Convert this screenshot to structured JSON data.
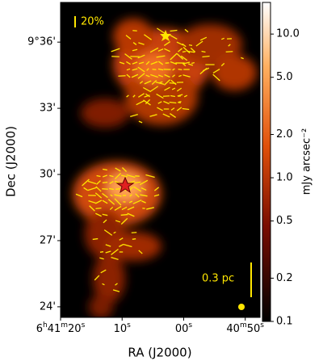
{
  "chart_data": {
    "type": "image",
    "xlabel": "RA (J2000)",
    "ylabel": "Dec (J2000)",
    "xlim": [
      20,
      -12.4
    ],
    "ylim": [
      23.52,
      37.8
    ],
    "xticks": [
      {
        "value": 20,
        "label": "6h41m20s"
      },
      {
        "value": 10,
        "label": "10s"
      },
      {
        "value": 0,
        "label": "00s"
      },
      {
        "value": -10,
        "label": "40m50s"
      }
    ],
    "yticks": [
      {
        "value": 36,
        "label": "9°36'"
      },
      {
        "value": 33,
        "label": "33'"
      },
      {
        "value": 30,
        "label": "30'"
      },
      {
        "value": 27,
        "label": "27'"
      },
      {
        "value": 24,
        "label": "24'"
      }
    ],
    "colorbar": {
      "label": "mJy arcsec⁻²",
      "log": true,
      "lim": [
        0.1,
        16.6
      ],
      "ticks": [
        0.1,
        0.2,
        0.5,
        {
          "value": 1,
          "label": "1.0"
        },
        {
          "value": 2,
          "label": "2.0"
        },
        {
          "value": 5,
          "label": "5.0"
        },
        {
          "value": 10,
          "label": "10.0"
        }
      ]
    },
    "annotations": [
      "20%",
      "0.3 pc"
    ]
  }
}
